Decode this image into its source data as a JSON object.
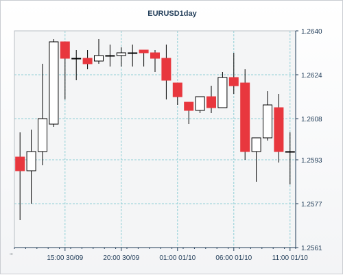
{
  "chart_data": {
    "type": "candlestick",
    "title": "EURUSD1day",
    "xlabel": "",
    "ylabel": "",
    "ylim": [
      1.2561,
      1.264
    ],
    "yticks": [
      "1.2561",
      "1.2577",
      "1.2593",
      "1.2608",
      "1.2624",
      "1.2640"
    ],
    "xticks": [
      "15:00 30/09",
      "20:00 30/09",
      "01:00 01/10",
      "06:00 01/10",
      "11:00 01/10"
    ],
    "xtick_candle_index": [
      4.5,
      9.5,
      14.5,
      19.5,
      24.5
    ],
    "grid": true,
    "legend": "none",
    "colors": {
      "up_fill": "#ffffff",
      "down_fill": "#e8373e",
      "wick": "#000000",
      "grid": "#8fcfd6",
      "axis": "#1f3b57"
    },
    "candles": [
      {
        "open": 1.2594,
        "high": 1.2603,
        "low": 1.2571,
        "close": 1.2589
      },
      {
        "open": 1.2589,
        "high": 1.2604,
        "low": 1.2577,
        "close": 1.2596
      },
      {
        "open": 1.2596,
        "high": 1.2628,
        "low": 1.2591,
        "close": 1.2608
      },
      {
        "open": 1.2606,
        "high": 1.2637,
        "low": 1.2605,
        "close": 1.2636
      },
      {
        "open": 1.2636,
        "high": 1.2636,
        "low": 1.2615,
        "close": 1.263
      },
      {
        "open": 1.263,
        "high": 1.2633,
        "low": 1.2622,
        "close": 1.263
      },
      {
        "open": 1.263,
        "high": 1.2633,
        "low": 1.2626,
        "close": 1.2628
      },
      {
        "open": 1.2629,
        "high": 1.2637,
        "low": 1.2628,
        "close": 1.2631
      },
      {
        "open": 1.2631,
        "high": 1.2635,
        "low": 1.2627,
        "close": 1.2631
      },
      {
        "open": 1.2631,
        "high": 1.2634,
        "low": 1.2627,
        "close": 1.2632
      },
      {
        "open": 1.2632,
        "high": 1.2635,
        "low": 1.2627,
        "close": 1.2632
      },
      {
        "open": 1.2633,
        "high": 1.2633,
        "low": 1.2627,
        "close": 1.2632
      },
      {
        "open": 1.2632,
        "high": 1.2633,
        "low": 1.2625,
        "close": 1.263
      },
      {
        "open": 1.263,
        "high": 1.2635,
        "low": 1.2615,
        "close": 1.2622
      },
      {
        "open": 1.2621,
        "high": 1.2621,
        "low": 1.2613,
        "close": 1.2616
      },
      {
        "open": 1.2614,
        "high": 1.2614,
        "low": 1.2606,
        "close": 1.2611
      },
      {
        "open": 1.2611,
        "high": 1.2616,
        "low": 1.261,
        "close": 1.2616
      },
      {
        "open": 1.2616,
        "high": 1.262,
        "low": 1.261,
        "close": 1.2612
      },
      {
        "open": 1.2612,
        "high": 1.2625,
        "low": 1.2612,
        "close": 1.2623
      },
      {
        "open": 1.2623,
        "high": 1.2632,
        "low": 1.2617,
        "close": 1.262
      },
      {
        "open": 1.2621,
        "high": 1.2626,
        "low": 1.2593,
        "close": 1.2596
      },
      {
        "open": 1.2596,
        "high": 1.2601,
        "low": 1.2585,
        "close": 1.2601
      },
      {
        "open": 1.2601,
        "high": 1.2618,
        "low": 1.26,
        "close": 1.2613
      },
      {
        "open": 1.2612,
        "high": 1.2617,
        "low": 1.2592,
        "close": 1.2596
      },
      {
        "open": 1.2596,
        "high": 1.2603,
        "low": 1.2584,
        "close": 1.2596
      }
    ]
  }
}
